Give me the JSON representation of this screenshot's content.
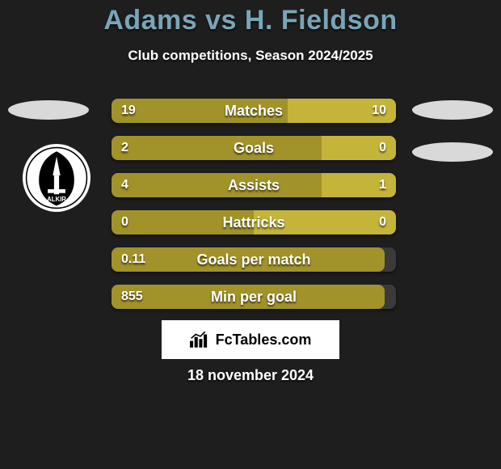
{
  "title_color": "#7aa5b8",
  "title": "Adams vs H. Fieldson",
  "subtitle": "Club competitions, Season 2024/2025",
  "date": "18 november 2024",
  "fc_label": "FcTables.com",
  "colors": {
    "left": "#a19329",
    "right": "#c4b53a",
    "oval": "#d9d9d9",
    "track": "#3a3a3a",
    "background": "#1e1e1e"
  },
  "rows": [
    {
      "label": "Matches",
      "left_val": "19",
      "right_val": "10",
      "left_pct": 62,
      "right_pct": 38
    },
    {
      "label": "Goals",
      "left_val": "2",
      "right_val": "0",
      "left_pct": 74,
      "right_pct": 26
    },
    {
      "label": "Assists",
      "left_val": "4",
      "right_val": "1",
      "left_pct": 74,
      "right_pct": 26
    },
    {
      "label": "Hattricks",
      "left_val": "0",
      "right_val": "0",
      "left_pct": 50,
      "right_pct": 50
    },
    {
      "label": "Goals per match",
      "left_val": "0.11",
      "right_val": "",
      "left_pct": 96,
      "right_pct": 0
    },
    {
      "label": "Min per goal",
      "left_val": "855",
      "right_val": "",
      "left_pct": 96,
      "right_pct": 0
    }
  ]
}
